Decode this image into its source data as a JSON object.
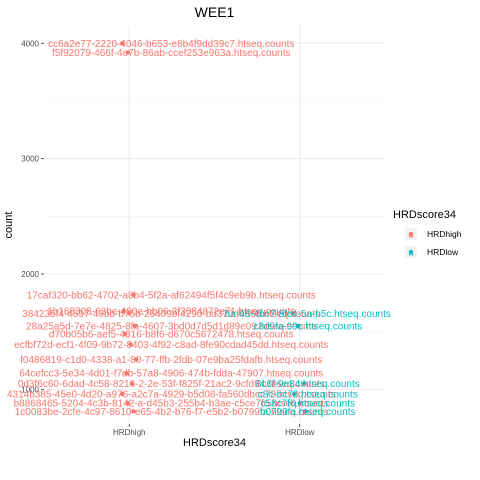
{
  "chart_data": {
    "type": "scatter",
    "title": "WEE1",
    "xlabel": "HRDscore34",
    "ylabel": "count",
    "categories": [
      "HRDhigh",
      "HRDlow"
    ],
    "y_ticks": [
      1000,
      2000,
      3000,
      4000
    ],
    "ylim": [
      700,
      4150
    ],
    "grid": true,
    "legend": {
      "title": "HRDscore34",
      "placement": "right",
      "entries": [
        {
          "label": "HRDhigh",
          "color": "#F8766D"
        },
        {
          "label": "HRDlow",
          "color": "#00BFC4"
        }
      ]
    },
    "series": [
      {
        "name": "HRDhigh",
        "color": "#F8766D",
        "points": [
          {
            "x": "HRDhigh",
            "y": 4000,
            "label": "cc6a2e77-2220-4046-b653-e8b4f9dd39c7.htseq.counts"
          },
          {
            "x": "HRDhigh",
            "y": 3920,
            "label": "f5f92079-466f-4e7b-86ab-ccef253e963a.htseq.counts"
          },
          {
            "x": "HRDhigh",
            "y": 1820,
            "label": "17caf320-bb62-4702-a8b4-5f2a-af62494f5f4c9eb9b.htseq.counts"
          },
          {
            "x": "HRDhigh",
            "y": 1680,
            "label": "1b168308-63be-400e-bb06-3f3084872e71.htseq.counts"
          },
          {
            "x": "HRDhigh",
            "y": 1660,
            "label": "384235f4-4697-49bb-b75b-26409bf4290-bd370d9a5c.htseq.counts"
          },
          {
            "x": "HRDhigh",
            "y": 1550,
            "label": "28a25a5d-7e7e-4825-8fa-4607-3bd0d7d5d1d89e09.htseq.counts"
          },
          {
            "x": "HRDhigh",
            "y": 1480,
            "label": "d70b05b6-aef5-4316-b8f6-d670c5672478.htseq.counts"
          },
          {
            "x": "HRDhigh",
            "y": 1390,
            "label": "ecfbf72d-ecf1-4f09-9b72-8403-4f92-c8ad-8fe90cdad45dd.htseq.counts"
          },
          {
            "x": "HRDhigh",
            "y": 1260,
            "label": "f0486819-c1d0-4338-a1-80-77-ffb-2fdb-07e9ba25fdafb.htseq.counts"
          },
          {
            "x": "HRDhigh",
            "y": 1140,
            "label": "64cefcc3-5e34-4d01-f7db-57a8-4906-474b-fdda-47907.htseq.counts"
          },
          {
            "x": "HRDhigh",
            "y": 1050,
            "label": "0d3f6c60-6dad-4c58-8216-2-2e-53f-f825f-21ac2-9cfd84.htseq.counts"
          },
          {
            "x": "HRDhigh",
            "y": 960,
            "label": "4314b385-45e0-4d20-a976-a2c7a-4929-b5d08-fa560dbcc78.htseq.counts"
          },
          {
            "x": "HRDhigh",
            "y": 880,
            "label": "b8868465-5204-4c3b-8142-a-d45b3-255b4-b3ae-c5ce7f6.htseq.counts"
          },
          {
            "x": "HRDhigh",
            "y": 810,
            "label": "1c0083be-2cfe-4c97-8610-e65-4b2-b76-f7-e5b2-b0799fa.htseq.counts"
          }
        ]
      },
      {
        "name": "HRDlow",
        "color": "#00BFC4",
        "points": [
          {
            "x": "HRDlow",
            "y": 1660,
            "label": "ba-48-4bc7-8fc4-5a-b5c.htseq.counts"
          },
          {
            "x": "HRDlow",
            "y": 1550,
            "label": "c8d9fa-99c.htseq.counts"
          },
          {
            "x": "HRDlow",
            "y": 1050,
            "label": "8c6f-9e84.htseq.counts"
          },
          {
            "x": "HRDlow",
            "y": 960,
            "label": "c8c-bc78.htseq.counts"
          },
          {
            "x": "HRDlow",
            "y": 880,
            "label": "c58c7f6.htseq.counts"
          },
          {
            "x": "HRDlow",
            "y": 810,
            "label": "b0799fa.htseq.counts"
          }
        ]
      }
    ]
  }
}
